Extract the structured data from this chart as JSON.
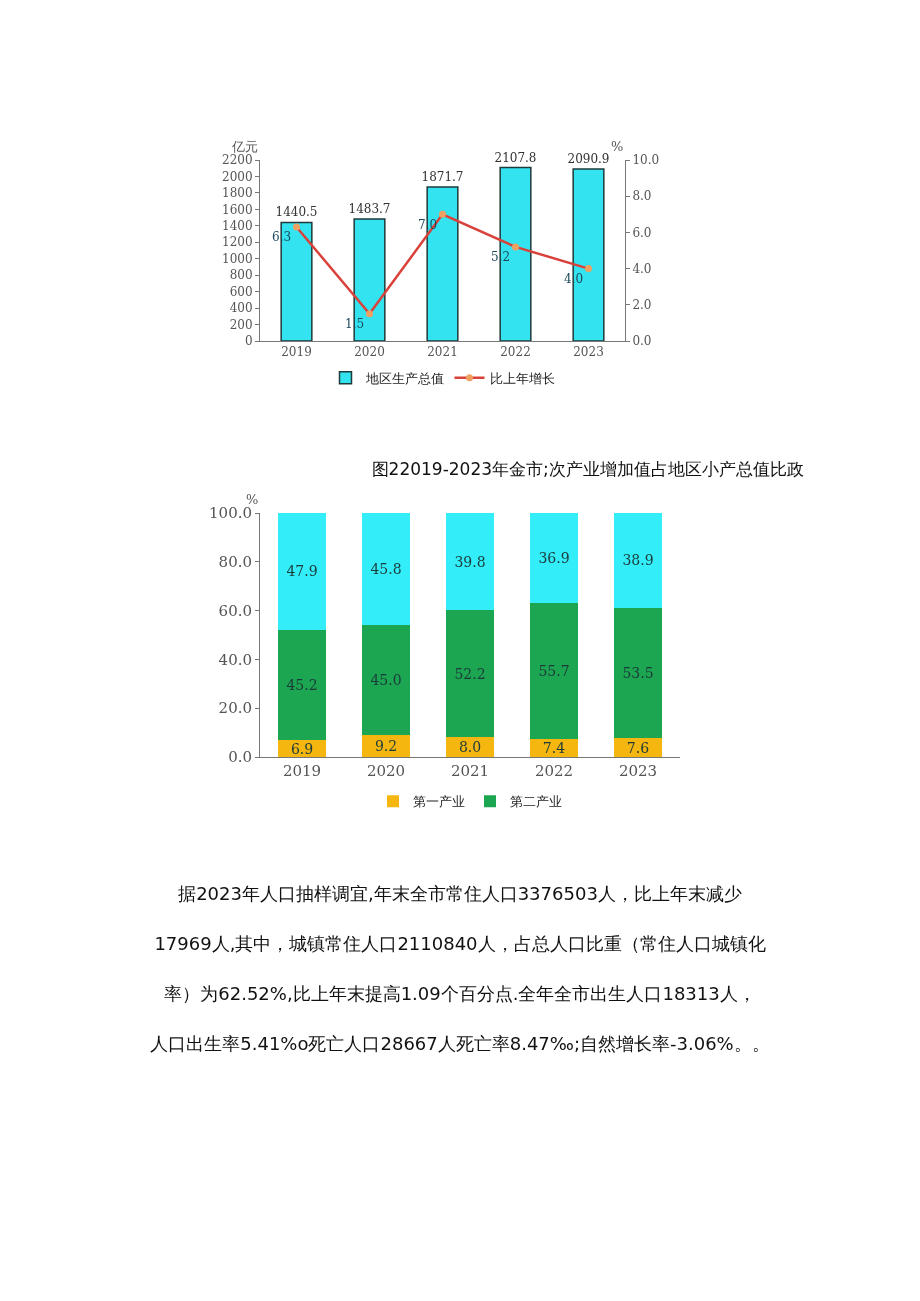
{
  "chart_data": [
    {
      "type": "bar",
      "ylabel": "亿元",
      "y2label": "%",
      "categories": [
        "2019",
        "2020",
        "2021",
        "2022",
        "2023"
      ],
      "series": [
        {
          "name": "地区生产总值",
          "type": "bar",
          "color": "#33e3f0",
          "values": [
            1440.5,
            1483.7,
            1871.7,
            2107.8,
            2090.9
          ],
          "value_labels": [
            "1440.5",
            "1483.7",
            "1871.7",
            "2107.8",
            "2090.9"
          ]
        },
        {
          "name": "比上年增长",
          "type": "line",
          "axis": "y2",
          "color": "#d9423a",
          "values": [
            6.3,
            1.5,
            7.0,
            5.2,
            4.0
          ],
          "value_labels": [
            "6.3",
            "1.5",
            "7.0",
            "5.2",
            "4.0"
          ]
        }
      ],
      "ylim": [
        0,
        2200
      ],
      "yticks": [
        0,
        200,
        400,
        600,
        800,
        1000,
        1200,
        1400,
        1600,
        1800,
        2000,
        2200
      ],
      "y2lim": [
        0,
        10
      ],
      "y2ticks": [
        {
          "value": 0,
          "label": "0.0"
        },
        {
          "value": 2,
          "label": "2.0"
        },
        {
          "value": 4,
          "label": "4.0"
        },
        {
          "value": 6,
          "label": "6.0"
        },
        {
          "value": 8,
          "label": "8.0"
        },
        {
          "value": 10,
          "label": "10.0"
        }
      ],
      "marker": "circle",
      "grid": false,
      "legend": "bottom"
    },
    {
      "type": "bar",
      "title": "图22019-2023年金市;次产业增加值占地区小产总值比政",
      "ylabel": "%",
      "categories": [
        "2019",
        "2020",
        "2021",
        "2022",
        "2023"
      ],
      "stacked": true,
      "series": [
        {
          "name": "第一产业",
          "color": "#f5b70f",
          "values": [
            6.9,
            9.2,
            8.0,
            7.4,
            7.6
          ],
          "value_labels": [
            "6.9",
            "9.2",
            "8.0",
            "7.4",
            "7.6"
          ]
        },
        {
          "name": "第二产业",
          "color": "#1ca651",
          "values": [
            45.2,
            45.0,
            52.2,
            55.7,
            53.5
          ],
          "value_labels": [
            "45.2",
            "45.0",
            "52.2",
            "55.7",
            "53.5"
          ]
        },
        {
          "color": "#33eef8",
          "values": [
            47.9,
            45.8,
            39.8,
            36.9,
            38.9
          ],
          "value_labels": [
            "47.9",
            "45.8",
            "39.8",
            "36.9",
            "38.9"
          ]
        }
      ],
      "ylim": [
        0,
        100
      ],
      "yticks": [
        {
          "value": 0,
          "label": "0.0"
        },
        {
          "value": 20,
          "label": "20.0"
        },
        {
          "value": 40,
          "label": "40.0"
        },
        {
          "value": 60,
          "label": "60.0"
        },
        {
          "value": 80,
          "label": "80.0"
        },
        {
          "value": 100,
          "label": "100.0"
        }
      ],
      "grid": false,
      "legend": "bottom"
    },
    {
      "type": "other",
      "annotations": [
        "据2023年人口抽样调宜,年末全市常住人口3376503人，比上年末减少",
        "17969人,其中，城镇常住人口2110840人，占总人口比重（常住人口城镇化",
        "率）为62.52%,比上年末提高1.09个百分点.全年全市出生人口18313人，",
        "人口出生率5.41%o死亡人口28667人死亡率8.47‰;自然增长率-3.06%。。"
      ]
    }
  ]
}
